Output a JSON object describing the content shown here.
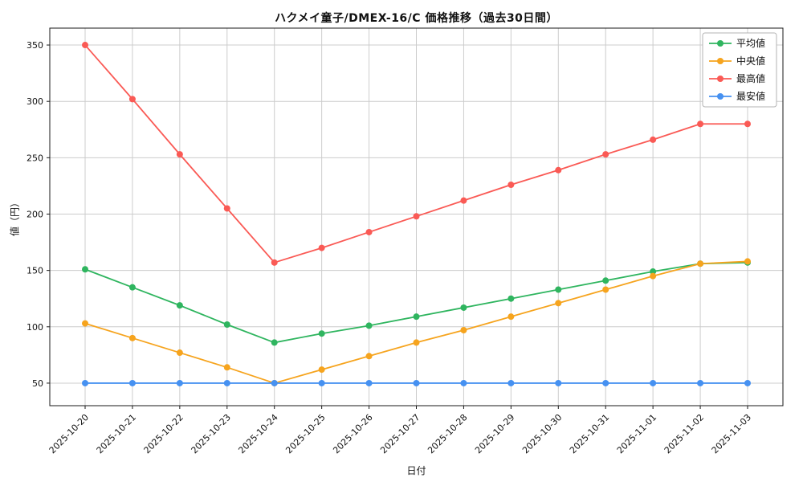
{
  "figure": {
    "background": "#ffffff"
  },
  "chart_data": {
    "type": "line",
    "title": "ハクメイ童子/DMEX-16/C 価格推移（過去30日間）",
    "xlabel": "日付",
    "ylabel": "値（円）",
    "x": [
      "2025-10-20",
      "2025-10-21",
      "2025-10-22",
      "2025-10-23",
      "2025-10-24",
      "2025-10-25",
      "2025-10-26",
      "2025-10-27",
      "2025-10-28",
      "2025-10-29",
      "2025-10-30",
      "2025-10-31",
      "2025-11-01",
      "2025-11-02",
      "2025-11-03"
    ],
    "series": [
      {
        "name": "平均値",
        "color": "#2fb55f",
        "values": [
          151,
          135,
          119,
          102,
          86,
          94,
          101,
          109,
          117,
          125,
          133,
          141,
          149,
          156,
          157
        ]
      },
      {
        "name": "中央値",
        "color": "#f6a41e",
        "values": [
          103,
          90,
          77,
          64,
          50,
          62,
          74,
          86,
          97,
          109,
          121,
          133,
          145,
          156,
          158
        ]
      },
      {
        "name": "最高値",
        "color": "#fa5a55",
        "values": [
          350,
          302,
          253,
          205,
          157,
          170,
          184,
          198,
          212,
          226,
          239,
          253,
          266,
          280,
          280
        ]
      },
      {
        "name": "最安値",
        "color": "#4691f1",
        "values": [
          50,
          50,
          50,
          50,
          50,
          50,
          50,
          50,
          50,
          50,
          50,
          50,
          50,
          50,
          50
        ]
      }
    ],
    "ylim": [
      30,
      365
    ],
    "yticks": [
      50,
      100,
      150,
      200,
      250,
      300,
      350
    ],
    "grid": true,
    "grid_color": "#cccccc",
    "axis_color": "#1a1a1a",
    "legend": {
      "position": "top-right",
      "entries": [
        "平均値",
        "中央値",
        "最高値",
        "最安値"
      ]
    }
  }
}
